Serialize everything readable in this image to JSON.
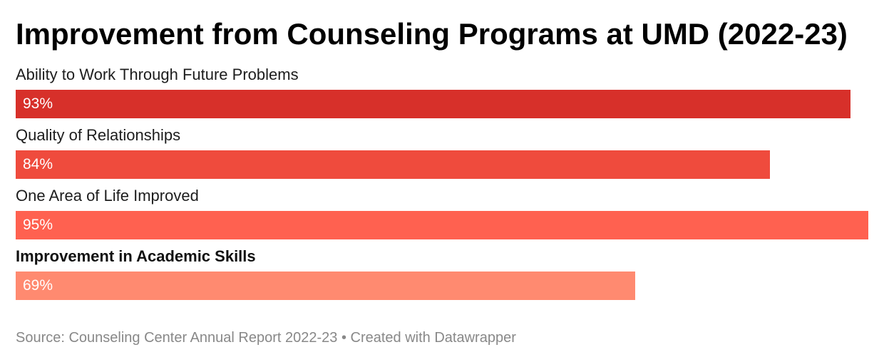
{
  "chart_data": {
    "type": "bar",
    "orientation": "horizontal",
    "title": "Improvement from Counseling Programs at UMD (2022-23)",
    "categories": [
      "Ability to Work Through Future Problems",
      "Quality of Relationships",
      "One Area of Life Improved",
      "Improvement in Academic Skills"
    ],
    "values": [
      93,
      84,
      95,
      69
    ],
    "value_labels": [
      "93%",
      "84%",
      "95%",
      "69%"
    ],
    "highlighted_category": "Improvement in Academic Skills",
    "bar_colors": [
      "#d7302a",
      "#ef4b3d",
      "#ff6150",
      "#ff8a70"
    ],
    "xlim": [
      0,
      95
    ],
    "grid": false,
    "legend": "none",
    "source": "Source: Counseling Center Annual Report 2022-23 • Created with Datawrapper"
  }
}
